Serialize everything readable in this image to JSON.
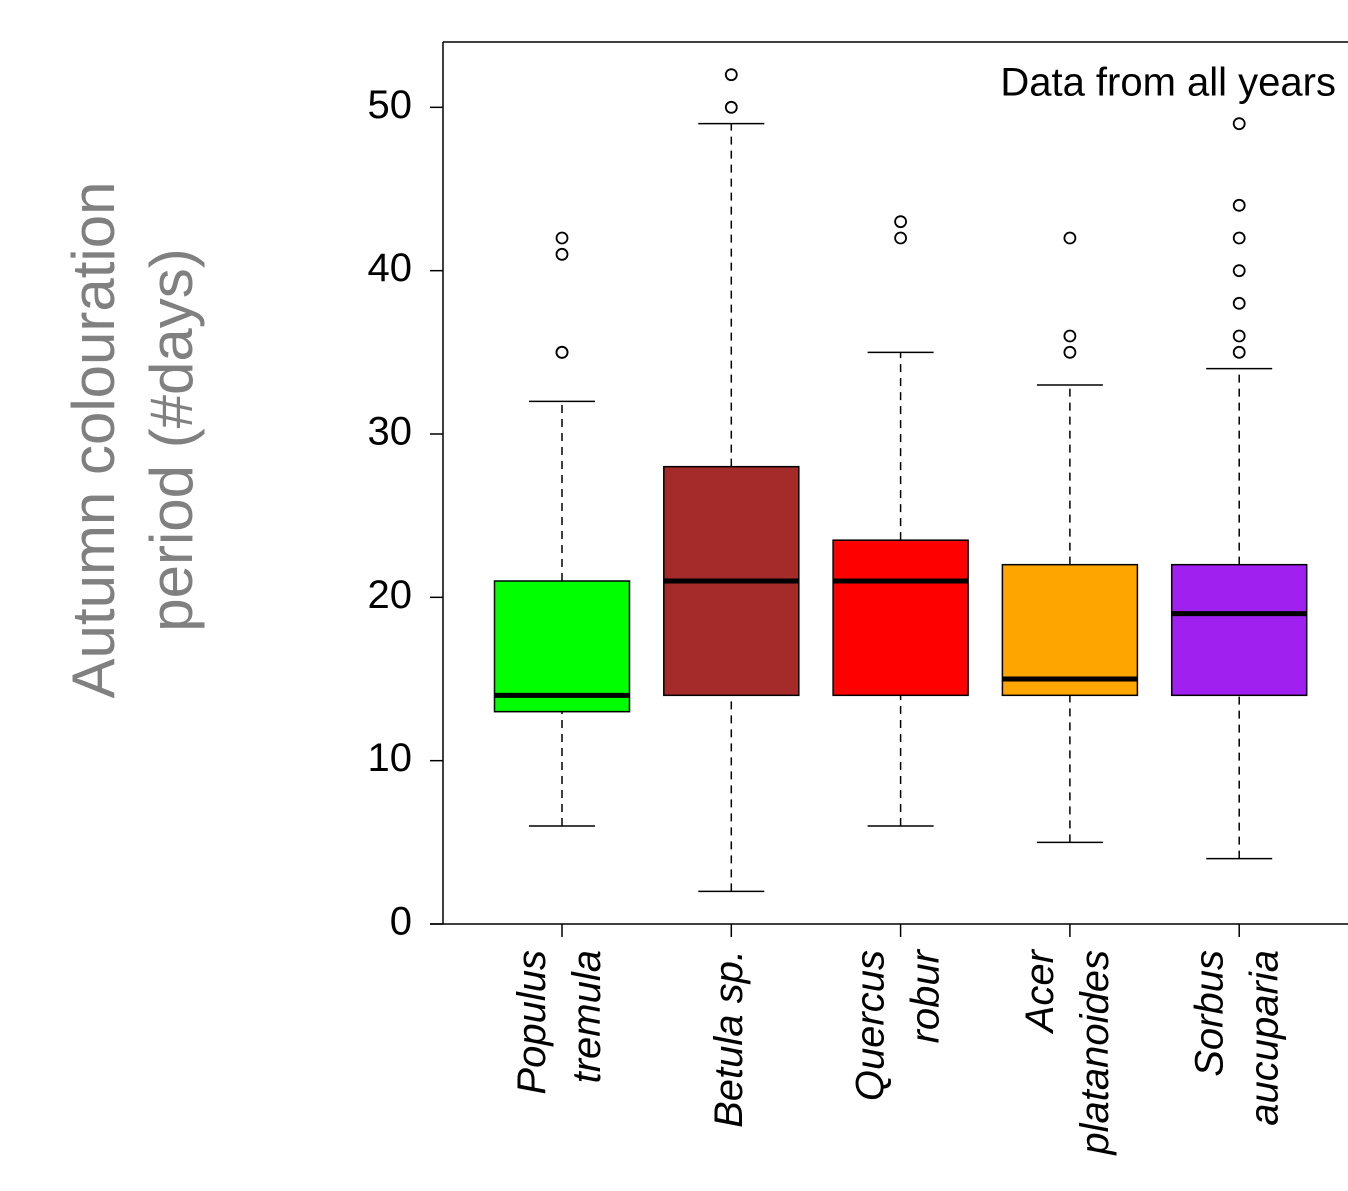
{
  "chart_data": {
    "type": "boxplot",
    "y_label": [
      "Autumn colouration",
      "period (#days)"
    ],
    "annotation": "Data from all years",
    "categories": [
      [
        "Populus",
        "tremula"
      ],
      [
        "Betula sp."
      ],
      [
        "Quercus",
        "robur"
      ],
      [
        "Acer",
        "platanoides"
      ],
      [
        "Sorbus",
        "aucuparia"
      ]
    ],
    "colors": [
      "#00ff00",
      "#a52a2a",
      "#ff0000",
      "#ffa500",
      "#a020f0"
    ],
    "boxes": [
      {
        "whisker_low": 6,
        "q1": 13,
        "median": 14,
        "q3": 21,
        "whisker_high": 32,
        "outliers": [
          35,
          35,
          41,
          42
        ]
      },
      {
        "whisker_low": 2,
        "q1": 14,
        "median": 21,
        "q3": 28,
        "whisker_high": 49,
        "outliers": [
          50,
          52
        ]
      },
      {
        "whisker_low": 6,
        "q1": 14,
        "median": 21,
        "q3": 23.5,
        "whisker_high": 35,
        "outliers": [
          42,
          43
        ]
      },
      {
        "whisker_low": 5,
        "q1": 14,
        "median": 15,
        "q3": 22,
        "whisker_high": 33,
        "outliers": [
          35,
          36,
          42
        ]
      },
      {
        "whisker_low": 4,
        "q1": 14,
        "median": 19,
        "q3": 22,
        "whisker_high": 34,
        "outliers": [
          35,
          36,
          38,
          40,
          42,
          44,
          49
        ]
      }
    ],
    "ylim": [
      0,
      54
    ],
    "yticks": [
      0,
      10,
      20,
      30,
      40,
      50
    ]
  }
}
